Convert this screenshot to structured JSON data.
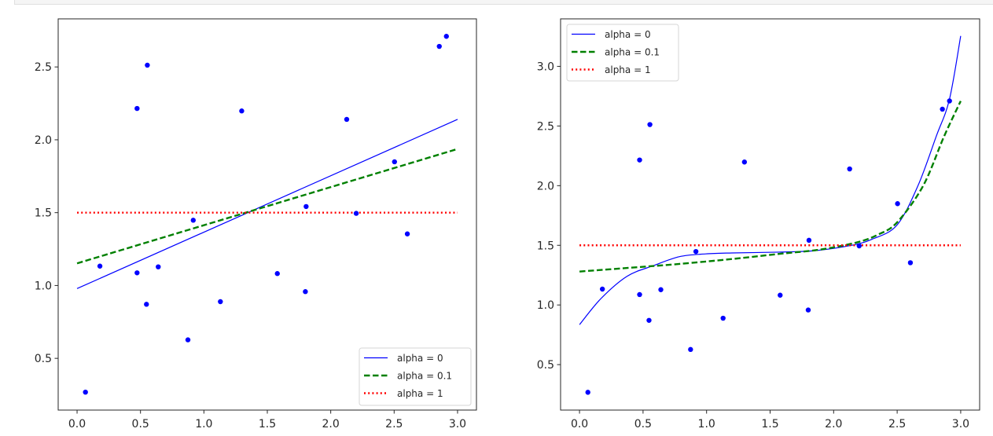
{
  "chart_data": [
    {
      "type": "scatter",
      "panel": "left",
      "title": "",
      "xlabel": "",
      "ylabel": "",
      "xlim": [
        -0.149,
        3.149
      ],
      "ylim": [
        0.145,
        2.83
      ],
      "xticks": [
        0.0,
        0.5,
        1.0,
        1.5,
        2.0,
        2.5,
        3.0
      ],
      "xtick_labels": [
        "0.0",
        "0.5",
        "1.0",
        "1.5",
        "2.0",
        "2.5",
        "3.0"
      ],
      "yticks": [
        0.5,
        1.0,
        1.5,
        2.0,
        2.5
      ],
      "ytick_labels": [
        "0.5",
        "1.0",
        "1.5",
        "2.0",
        "2.5"
      ],
      "grid": false,
      "legend_position": "lower-right",
      "points": {
        "color": "#0000ff",
        "x": [
          0.066,
          0.18,
          0.473,
          0.473,
          0.554,
          0.547,
          0.64,
          0.874,
          0.916,
          1.13,
          1.298,
          1.579,
          1.8,
          1.806,
          2.126,
          2.201,
          2.503,
          2.604,
          2.856,
          2.912
        ],
        "y": [
          0.268,
          1.133,
          1.087,
          2.215,
          2.512,
          0.871,
          1.128,
          0.627,
          1.448,
          0.889,
          2.198,
          1.082,
          0.958,
          1.542,
          2.14,
          1.495,
          1.849,
          1.354,
          2.641,
          2.71
        ]
      },
      "series": [
        {
          "name": "alpha = 0",
          "color": "#0000ff",
          "style": "solid",
          "x": [
            0.0,
            3.0
          ],
          "y": [
            0.979,
            2.14
          ]
        },
        {
          "name": "alpha = 0.1",
          "color": "#008000",
          "style": "dashed",
          "x": [
            0.0,
            3.0
          ],
          "y": [
            1.152,
            1.937
          ]
        },
        {
          "name": "alpha = 1",
          "color": "#ff0000",
          "style": "dotted",
          "x": [
            0.0,
            3.0
          ],
          "y": [
            1.5,
            1.5
          ]
        }
      ]
    },
    {
      "type": "scatter",
      "panel": "right",
      "title": "",
      "xlabel": "",
      "ylabel": "",
      "xlim": [
        -0.149,
        3.149
      ],
      "ylim": [
        0.119,
        3.398
      ],
      "xticks": [
        0.0,
        0.5,
        1.0,
        1.5,
        2.0,
        2.5,
        3.0
      ],
      "xtick_labels": [
        "0.0",
        "0.5",
        "1.0",
        "1.5",
        "2.0",
        "2.5",
        "3.0"
      ],
      "yticks": [
        0.5,
        1.0,
        1.5,
        2.0,
        2.5,
        3.0
      ],
      "ytick_labels": [
        "0.5",
        "1.0",
        "1.5",
        "2.0",
        "2.5",
        "3.0"
      ],
      "grid": false,
      "legend_position": "upper-left",
      "points": {
        "color": "#0000ff",
        "x": [
          0.066,
          0.18,
          0.473,
          0.473,
          0.554,
          0.547,
          0.64,
          0.874,
          0.916,
          1.13,
          1.298,
          1.579,
          1.8,
          1.806,
          2.126,
          2.201,
          2.503,
          2.604,
          2.856,
          2.912
        ],
        "y": [
          0.268,
          1.133,
          1.087,
          2.215,
          2.512,
          0.871,
          1.128,
          0.627,
          1.448,
          0.889,
          2.198,
          1.082,
          0.958,
          1.542,
          2.14,
          1.495,
          1.849,
          1.354,
          2.641,
          2.71
        ]
      },
      "series": [
        {
          "name": "alpha = 0",
          "color": "#0000ff",
          "style": "solid",
          "x": [
            0.0,
            0.169,
            0.375,
            0.581,
            0.787,
            0.993,
            1.199,
            1.57,
            1.85,
            2.127,
            2.3,
            2.498,
            2.663,
            2.808,
            2.911,
            3.0
          ],
          "y": [
            0.835,
            1.054,
            1.241,
            1.329,
            1.405,
            1.428,
            1.436,
            1.443,
            1.455,
            1.497,
            1.55,
            1.669,
            1.998,
            2.415,
            2.722,
            3.255
          ]
        },
        {
          "name": "alpha = 0.1",
          "color": "#008000",
          "style": "dashed",
          "x": [
            0.0,
            0.4,
            0.787,
            1.2,
            1.57,
            1.9,
            2.189,
            2.35,
            2.498,
            2.704,
            2.87,
            3.0
          ],
          "y": [
            1.28,
            1.312,
            1.344,
            1.385,
            1.428,
            1.465,
            1.526,
            1.59,
            1.691,
            1.998,
            2.415,
            2.709
          ]
        },
        {
          "name": "alpha = 1",
          "color": "#ff0000",
          "style": "dotted",
          "x": [
            0.0,
            3.0
          ],
          "y": [
            1.5,
            1.5
          ]
        }
      ]
    }
  ]
}
